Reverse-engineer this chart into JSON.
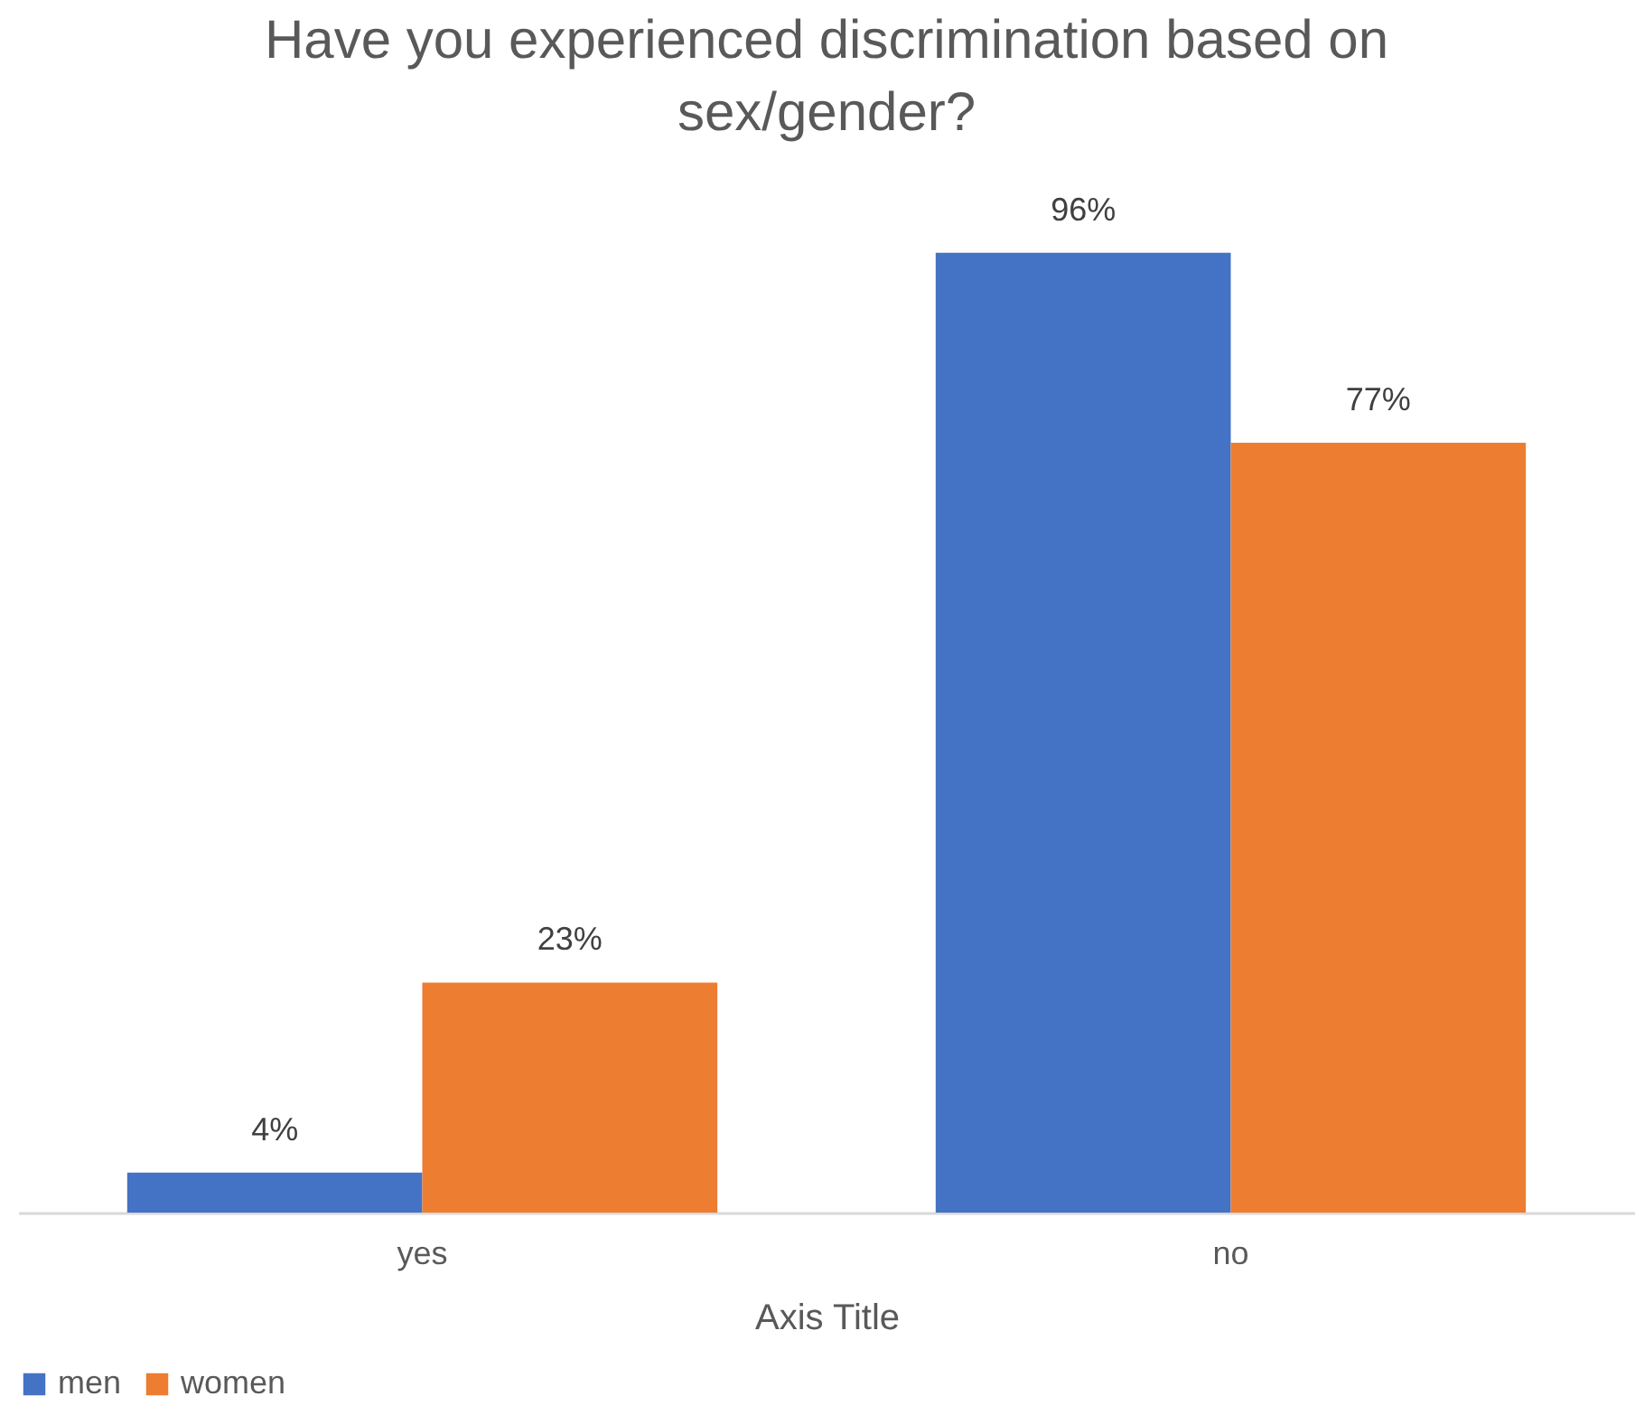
{
  "chart_data": {
    "type": "bar",
    "title": "Have you experienced discrimination based on sex/gender?",
    "xlabel": "Axis Title",
    "categories": [
      "yes",
      "no"
    ],
    "series": [
      {
        "name": "men",
        "color": "#4472c4",
        "values": [
          4,
          96
        ],
        "value_labels": [
          "4%",
          "96%"
        ]
      },
      {
        "name": "women",
        "color": "#ed7d31",
        "values": [
          23,
          77
        ],
        "value_labels": [
          "23%",
          "77%"
        ]
      }
    ],
    "legend": "bottom",
    "grid": false
  }
}
